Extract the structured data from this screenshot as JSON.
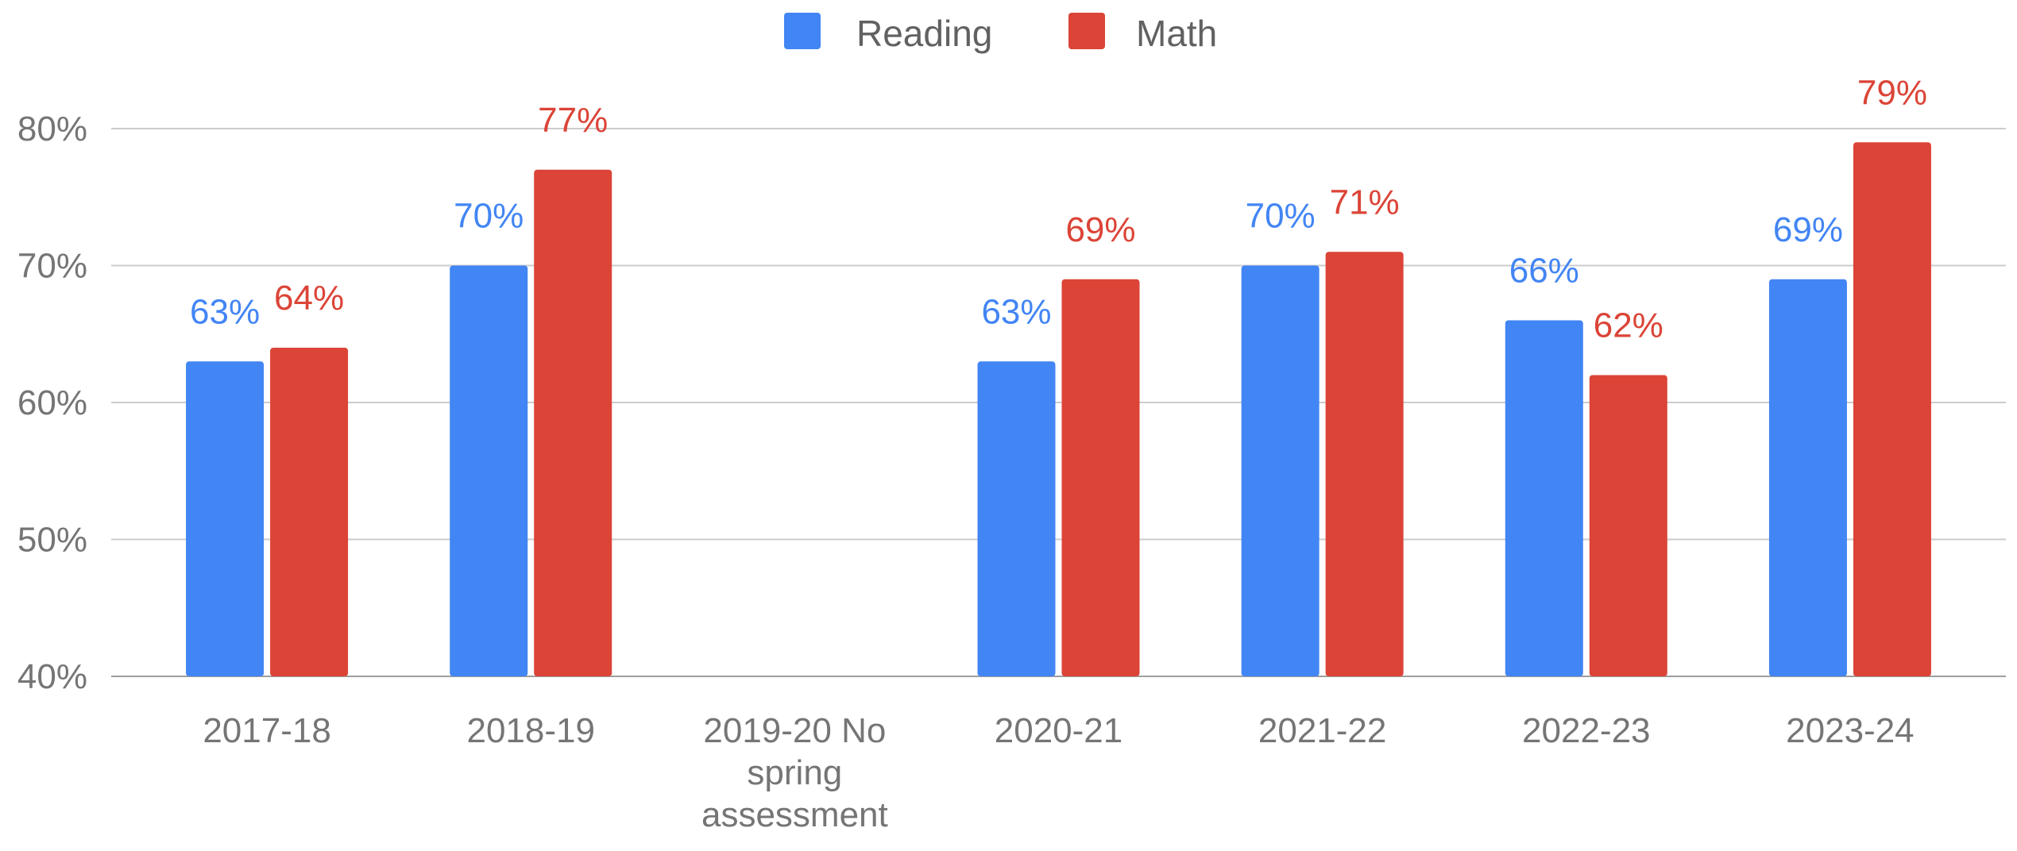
{
  "chart_data": {
    "type": "bar",
    "title": "",
    "xlabel": "",
    "ylabel": "",
    "ylim": [
      40,
      80
    ],
    "yticks": [
      "40%",
      "50%",
      "60%",
      "70%",
      "80%"
    ],
    "ytick_values": [
      40,
      50,
      60,
      70,
      80
    ],
    "grid": true,
    "legend_position": "top-center",
    "categories": [
      [
        "2017-18"
      ],
      [
        "2018-19"
      ],
      [
        "2019-20 No",
        "spring",
        "assessment"
      ],
      [
        "2020-21"
      ],
      [
        "2021-22"
      ],
      [
        "2022-23"
      ],
      [
        "2023-24"
      ]
    ],
    "series": [
      {
        "name": "Reading",
        "color": "#4285f4",
        "values": [
          63,
          70,
          null,
          63,
          70,
          66,
          69
        ],
        "labels": [
          "63%",
          "70%",
          "",
          "63%",
          "70%",
          "66%",
          "69%"
        ]
      },
      {
        "name": "Math",
        "color": "#db4437",
        "values": [
          64,
          77,
          null,
          69,
          71,
          62,
          79
        ],
        "labels": [
          "64%",
          "77%",
          "",
          "69%",
          "71%",
          "62%",
          "79%"
        ]
      }
    ]
  }
}
